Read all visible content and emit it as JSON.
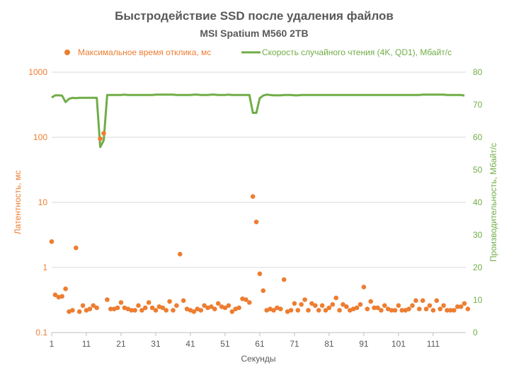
{
  "chart_data": {
    "type": "line",
    "title": "Быстродействие SSD после удаления файлов",
    "subtitle": "MSI Spatium M560 2TB",
    "xlabel": "Секунды",
    "ylabel_left": "Латентность, мс",
    "ylabel_right": "Производительность, Мбайт/с",
    "x_range": [
      1,
      120
    ],
    "x_ticks": [
      "1",
      "11",
      "21",
      "31",
      "41",
      "51",
      "61",
      "71",
      "81",
      "91",
      "101",
      "111"
    ],
    "x_tick_values": [
      1,
      11,
      21,
      31,
      41,
      51,
      61,
      71,
      81,
      91,
      101,
      111
    ],
    "y_left": {
      "scale": "log",
      "range": [
        0.1,
        1000
      ],
      "ticks": [
        "0.1",
        "1",
        "10",
        "100",
        "1000"
      ],
      "tick_values": [
        0.1,
        1,
        10,
        100,
        1000
      ]
    },
    "y_right": {
      "scale": "linear",
      "range": [
        0,
        80
      ],
      "ticks": [
        "0",
        "10",
        "20",
        "30",
        "40",
        "50",
        "60",
        "70",
        "80"
      ],
      "tick_values": [
        0,
        10,
        20,
        30,
        40,
        50,
        60,
        70,
        80
      ]
    },
    "grid": "horizontal",
    "legend_position": "top",
    "colors": {
      "latency": "#ED7D31",
      "speed": "#70AD47",
      "text": "#595959",
      "grid": "#D9D9D9"
    },
    "series": [
      {
        "name": "Максимальное время отклика, мс",
        "kind": "scatter",
        "axis": "left",
        "values": [
          2.5,
          0.38,
          0.35,
          0.36,
          0.47,
          0.21,
          0.22,
          2.0,
          0.21,
          0.26,
          0.22,
          0.23,
          0.26,
          0.24,
          95,
          115,
          0.32,
          0.23,
          0.23,
          0.24,
          0.29,
          0.24,
          0.23,
          0.22,
          0.22,
          0.26,
          0.22,
          0.24,
          0.29,
          0.24,
          0.22,
          0.25,
          0.24,
          0.22,
          0.3,
          0.22,
          0.26,
          1.6,
          0.31,
          0.23,
          0.22,
          0.21,
          0.23,
          0.22,
          0.26,
          0.24,
          0.25,
          0.23,
          0.28,
          0.25,
          0.24,
          0.26,
          0.21,
          0.23,
          0.24,
          0.33,
          0.32,
          0.29,
          12.3,
          5.0,
          0.8,
          0.44,
          0.22,
          0.23,
          0.22,
          0.24,
          0.23,
          0.65,
          0.21,
          0.22,
          0.28,
          0.22,
          0.27,
          0.32,
          0.22,
          0.28,
          0.26,
          0.22,
          0.26,
          0.22,
          0.24,
          0.27,
          0.34,
          0.22,
          0.27,
          0.25,
          0.22,
          0.23,
          0.24,
          0.27,
          0.5,
          0.23,
          0.3,
          0.24,
          0.24,
          0.22,
          0.26,
          0.23,
          0.22,
          0.22,
          0.26,
          0.22,
          0.22,
          0.23,
          0.26,
          0.31,
          0.23,
          0.31,
          0.23,
          0.26,
          0.22,
          0.31,
          0.23,
          0.26,
          0.22,
          0.22,
          0.22,
          0.25,
          0.25,
          0.28,
          0.23
        ]
      },
      {
        "name": "Скорость случайного чтения (4K, QD1), Мбайт/с",
        "kind": "line",
        "axis": "right",
        "values": [
          72.2,
          72.9,
          72.9,
          72.8,
          70.8,
          71.8,
          72.1,
          72.0,
          72.1,
          72.1,
          72.1,
          72.1,
          72.1,
          72.1,
          57.0,
          59.0,
          73.0,
          73.0,
          73.0,
          73.0,
          73.0,
          73.1,
          73.0,
          73.0,
          73.0,
          73.0,
          73.0,
          73.0,
          73.0,
          73.0,
          73.1,
          73.1,
          73.1,
          73.1,
          73.1,
          73.1,
          73.0,
          73.0,
          73.0,
          73.0,
          73.0,
          73.1,
          73.1,
          73.0,
          73.0,
          73.0,
          73.1,
          73.1,
          73.0,
          73.0,
          73.0,
          73.1,
          73.0,
          73.0,
          73.0,
          73.0,
          73.0,
          73.0,
          67.5,
          67.5,
          72.0,
          72.8,
          73.1,
          73.0,
          72.9,
          72.9,
          72.9,
          73.0,
          73.0,
          73.0,
          72.9,
          72.9,
          73.0,
          73.0,
          73.0,
          73.0,
          73.0,
          73.0,
          73.0,
          73.0,
          73.0,
          73.0,
          73.0,
          73.0,
          73.0,
          73.0,
          73.0,
          73.0,
          73.0,
          73.0,
          73.0,
          73.0,
          73.0,
          73.0,
          73.0,
          73.0,
          73.0,
          73.0,
          73.0,
          73.0,
          73.0,
          73.0,
          73.0,
          73.0,
          73.0,
          73.0,
          73.0,
          73.1,
          73.1,
          73.1,
          73.1,
          73.1,
          73.1,
          73.1,
          73.0,
          73.0,
          73.0,
          73.0,
          73.0,
          72.8
        ]
      }
    ]
  }
}
